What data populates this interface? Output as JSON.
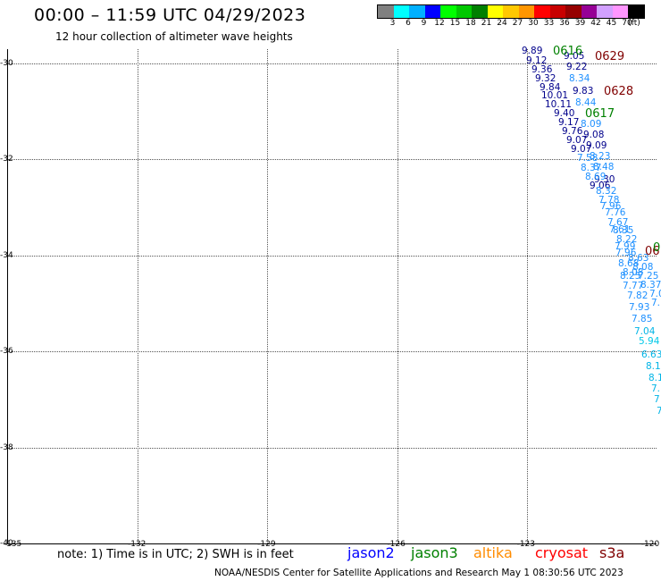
{
  "title": "00:00 – 11:59 UTC 04/29/2023",
  "subtitle": "12 hour collection of altimeter wave heights",
  "colorbar": {
    "colors": [
      "#808080",
      "#00ffff",
      "#00b0ff",
      "#0000ff",
      "#00ff00",
      "#00c800",
      "#008000",
      "#ffff00",
      "#ffc800",
      "#ff9600",
      "#ff0000",
      "#c80000",
      "#960000",
      "#960096",
      "#d2a0ff",
      "#ff96ff",
      "#000000"
    ],
    "labels": [
      "3",
      "6",
      "9",
      "12",
      "15",
      "18",
      "21",
      "24",
      "27",
      "30",
      "33",
      "36",
      "39",
      "42",
      "45",
      "70",
      "(ft)"
    ]
  },
  "map": {
    "lon_range": [
      -135,
      -120
    ],
    "lat_range": [
      -40,
      -29.7
    ],
    "lon_ticks": [
      "-135",
      "-132",
      "-129",
      "-126",
      "-123",
      "-120"
    ],
    "lat_ticks": [
      "-30",
      "-32",
      "-34",
      "-36",
      "-38",
      "-40"
    ]
  },
  "time_labels": [
    {
      "text": "0616",
      "color": "#008000"
    },
    {
      "text": "0629",
      "color": "#800000"
    },
    {
      "text": "0628",
      "color": "#800000"
    },
    {
      "text": "0617",
      "color": "#008000"
    },
    {
      "text": "06",
      "color": "#800000"
    },
    {
      "text": "0",
      "color": "#008000"
    }
  ],
  "observations": [
    {
      "v": "9.89",
      "c": "#00008b"
    },
    {
      "v": "9.12",
      "c": "#00008b"
    },
    {
      "v": "9.36",
      "c": "#00008b"
    },
    {
      "v": "9.32",
      "c": "#00008b"
    },
    {
      "v": "9.84",
      "c": "#00008b"
    },
    {
      "v": "10.01",
      "c": "#00008b"
    },
    {
      "v": "10.11",
      "c": "#00008b"
    },
    {
      "v": "9.40",
      "c": "#00008b"
    },
    {
      "v": "9.17",
      "c": "#00008b"
    },
    {
      "v": "9.76",
      "c": "#00008b"
    },
    {
      "v": "9.07",
      "c": "#00008b"
    },
    {
      "v": "9.07",
      "c": "#00008b"
    },
    {
      "v": "9.05",
      "c": "#00008b"
    },
    {
      "v": "9.22",
      "c": "#00008b"
    },
    {
      "v": "8.34",
      "c": "#1e90ff"
    },
    {
      "v": "9.83",
      "c": "#00008b"
    },
    {
      "v": "8.44",
      "c": "#1e90ff"
    },
    {
      "v": "8.09",
      "c": "#1e90ff"
    },
    {
      "v": "9.08",
      "c": "#00008b"
    },
    {
      "v": "9.09",
      "c": "#00008b"
    },
    {
      "v": "8.23",
      "c": "#1e90ff"
    },
    {
      "v": "7.58",
      "c": "#1e90ff"
    },
    {
      "v": "8.48",
      "c": "#1e90ff"
    },
    {
      "v": "8.37",
      "c": "#1e90ff"
    },
    {
      "v": "9.30",
      "c": "#00008b"
    },
    {
      "v": "8.69",
      "c": "#1e90ff"
    },
    {
      "v": "9.06",
      "c": "#00008b"
    },
    {
      "v": "8.32",
      "c": "#1e90ff"
    },
    {
      "v": "7.78",
      "c": "#1e90ff"
    },
    {
      "v": "7.96",
      "c": "#1e90ff"
    },
    {
      "v": "7.76",
      "c": "#1e90ff"
    },
    {
      "v": "7.67",
      "c": "#1e90ff"
    },
    {
      "v": "7.61",
      "c": "#1e90ff"
    },
    {
      "v": "8.35",
      "c": "#1e90ff"
    },
    {
      "v": "8.22",
      "c": "#1e90ff"
    },
    {
      "v": "7.99",
      "c": "#1e90ff"
    },
    {
      "v": "7.96",
      "c": "#1e90ff"
    },
    {
      "v": "8.63",
      "c": "#1e90ff"
    },
    {
      "v": "8.08",
      "c": "#1e90ff"
    },
    {
      "v": "8.68",
      "c": "#1e90ff"
    },
    {
      "v": "8.08",
      "c": "#1e90ff"
    },
    {
      "v": "8.25",
      "c": "#1e90ff"
    },
    {
      "v": "7.25",
      "c": "#1e90ff"
    },
    {
      "v": "7.77",
      "c": "#1e90ff"
    },
    {
      "v": "8.37",
      "c": "#1e90ff"
    },
    {
      "v": "7.82",
      "c": "#1e90ff"
    },
    {
      "v": "7.0",
      "c": "#1e90ff"
    },
    {
      "v": "7.93",
      "c": "#1e90ff"
    },
    {
      "v": "7.",
      "c": "#1e90ff"
    },
    {
      "v": "7.85",
      "c": "#1e90ff"
    },
    {
      "v": "7.04",
      "c": "#00b4e6"
    },
    {
      "v": "5.94",
      "c": "#00c8e8"
    },
    {
      "v": "6.63",
      "c": "#00b4e6"
    },
    {
      "v": "8.1",
      "c": "#00b4e6"
    },
    {
      "v": "8.1",
      "c": "#00b4e6"
    },
    {
      "v": "7.",
      "c": "#00b4e6"
    },
    {
      "v": "7",
      "c": "#00b4e6"
    },
    {
      "v": "7",
      "c": "#00b4e6"
    }
  ],
  "note": "note:  1) Time is in UTC;  2) SWH is in feet",
  "satellites": [
    {
      "name": "jason2",
      "color": "#0000ff"
    },
    {
      "name": "jason3",
      "color": "#008000"
    },
    {
      "name": "altika",
      "color": "#ff8c00"
    },
    {
      "name": "cryosat",
      "color": "#ff0000"
    },
    {
      "name": "s3a",
      "color": "#800000"
    }
  ],
  "credit": "NOAA/NESDIS Center for Satellite Applications and Research    May  1 08:30:56 UTC 2023"
}
